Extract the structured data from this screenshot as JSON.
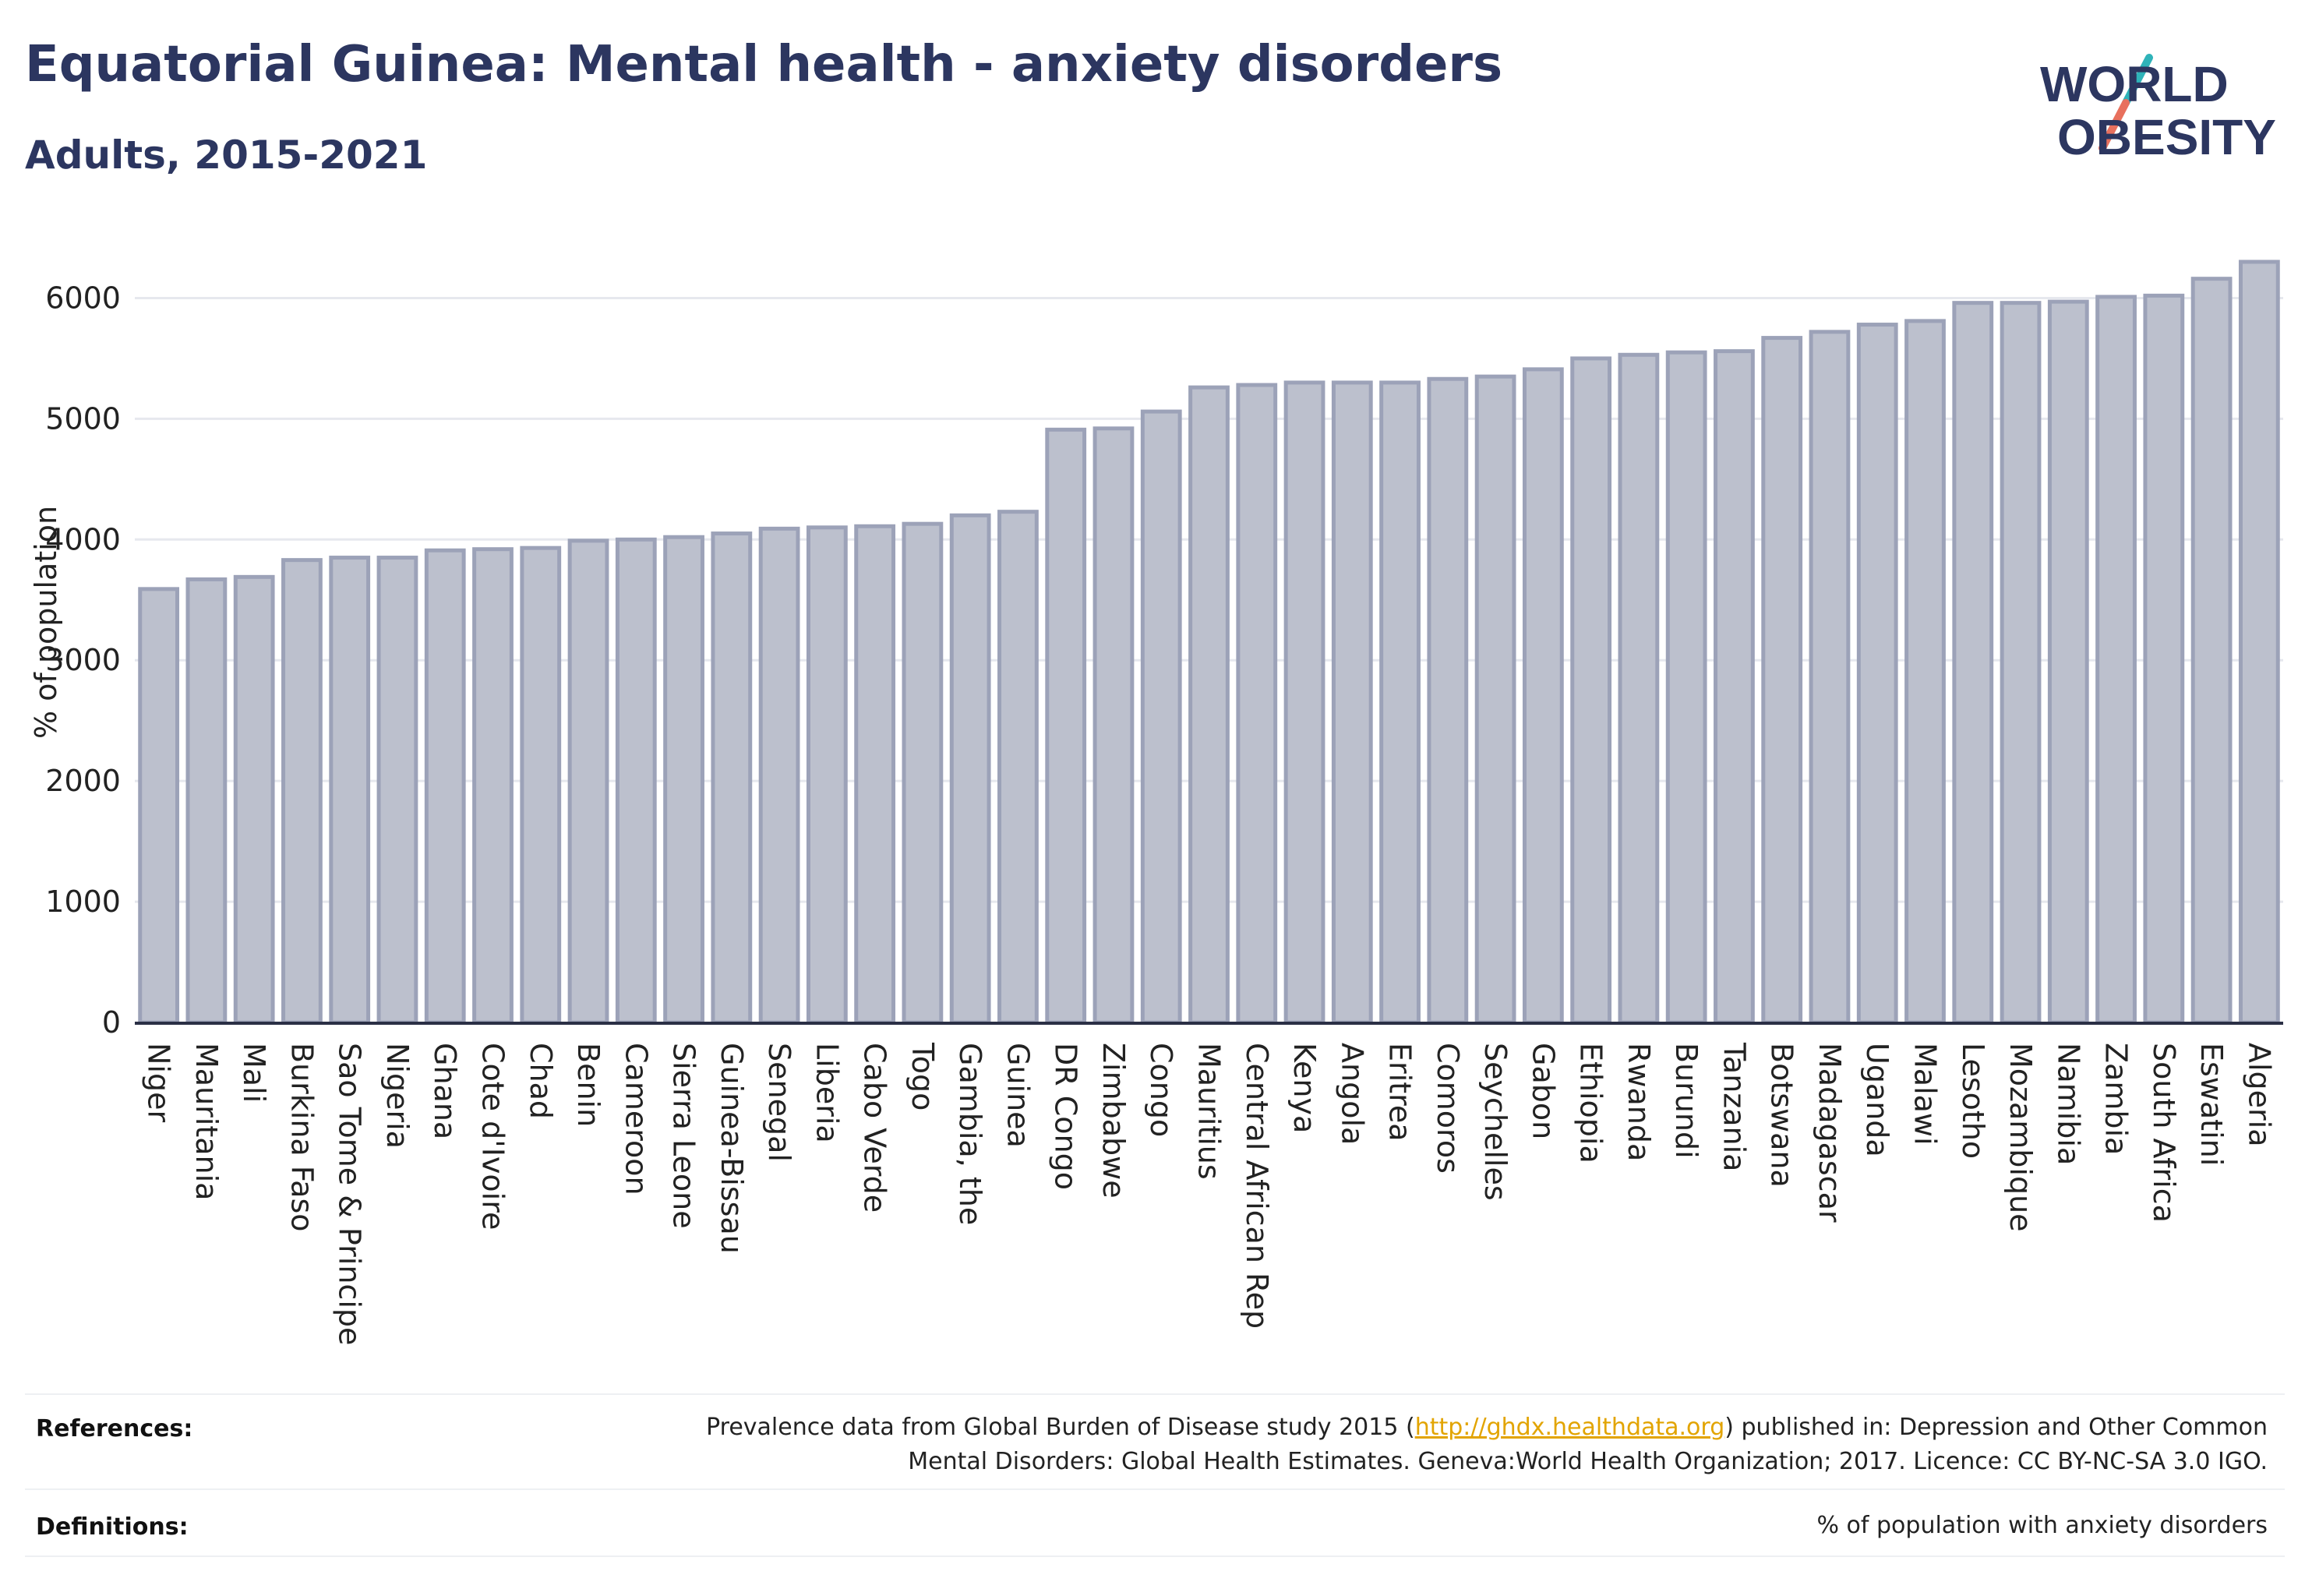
{
  "header": {
    "title": "Equatorial Guinea: Mental health - anxiety disorders",
    "subtitle": "Adults, 2015-2021"
  },
  "logo": {
    "line1": "WORLD",
    "line2": "OBESITY",
    "colors": {
      "text": "#2c3660",
      "slash_teal": "#2fb3b9",
      "slash_coral": "#e8705d"
    }
  },
  "colors": {
    "bar_fill": "#bcc0cd",
    "bar_stroke": "#9ca2b8",
    "grid": "#e6e8ee",
    "axis": "#2a2f45",
    "text": "#222222"
  },
  "chart_data": {
    "type": "bar",
    "ylabel": "% of population",
    "ylim": [
      0,
      6500
    ],
    "yticks": [
      0,
      1000,
      2000,
      3000,
      4000,
      5000,
      6000
    ],
    "grid": true,
    "categories": [
      "Niger",
      "Mauritania",
      "Mali",
      "Burkina Faso",
      "Sao Tome & Principe",
      "Nigeria",
      "Ghana",
      "Cote d'Ivoire",
      "Chad",
      "Benin",
      "Cameroon",
      "Sierra Leone",
      "Guinea-Bissau",
      "Senegal",
      "Liberia",
      "Cabo Verde",
      "Togo",
      "Gambia, the",
      "Guinea",
      "DR Congo",
      "Zimbabwe",
      "Congo",
      "Mauritius",
      "Central African Rep",
      "Kenya",
      "Angola",
      "Eritrea",
      "Comoros",
      "Seychelles",
      "Gabon",
      "Ethiopia",
      "Rwanda",
      "Burundi",
      "Tanzania",
      "Botswana",
      "Madagascar",
      "Uganda",
      "Malawi",
      "Lesotho",
      "Mozambique",
      "Namibia",
      "Zambia",
      "South Africa",
      "Eswatini",
      "Algeria"
    ],
    "values": [
      3590,
      3670,
      3690,
      3830,
      3850,
      3850,
      3910,
      3920,
      3930,
      3990,
      4000,
      4020,
      4050,
      4090,
      4100,
      4110,
      4130,
      4200,
      4230,
      4910,
      4920,
      5060,
      5260,
      5280,
      5300,
      5300,
      5300,
      5330,
      5350,
      5410,
      5500,
      5530,
      5550,
      5560,
      5670,
      5720,
      5780,
      5810,
      5960,
      5960,
      5970,
      6010,
      6020,
      6160,
      6300
    ]
  },
  "footer": {
    "references_label": "References:",
    "references_before": "Prevalence data from Global Burden of Disease study 2015 (",
    "references_link": "http://ghdx.healthdata.org",
    "references_after": ") published in: Depression and Other Common",
    "references_line2": "Mental Disorders: Global Health Estimates. Geneva:World Health Organization; 2017. Licence: CC BY-NC-SA 3.0 IGO.",
    "definitions_label": "Definitions:",
    "definitions_text": "% of population with anxiety disorders"
  }
}
